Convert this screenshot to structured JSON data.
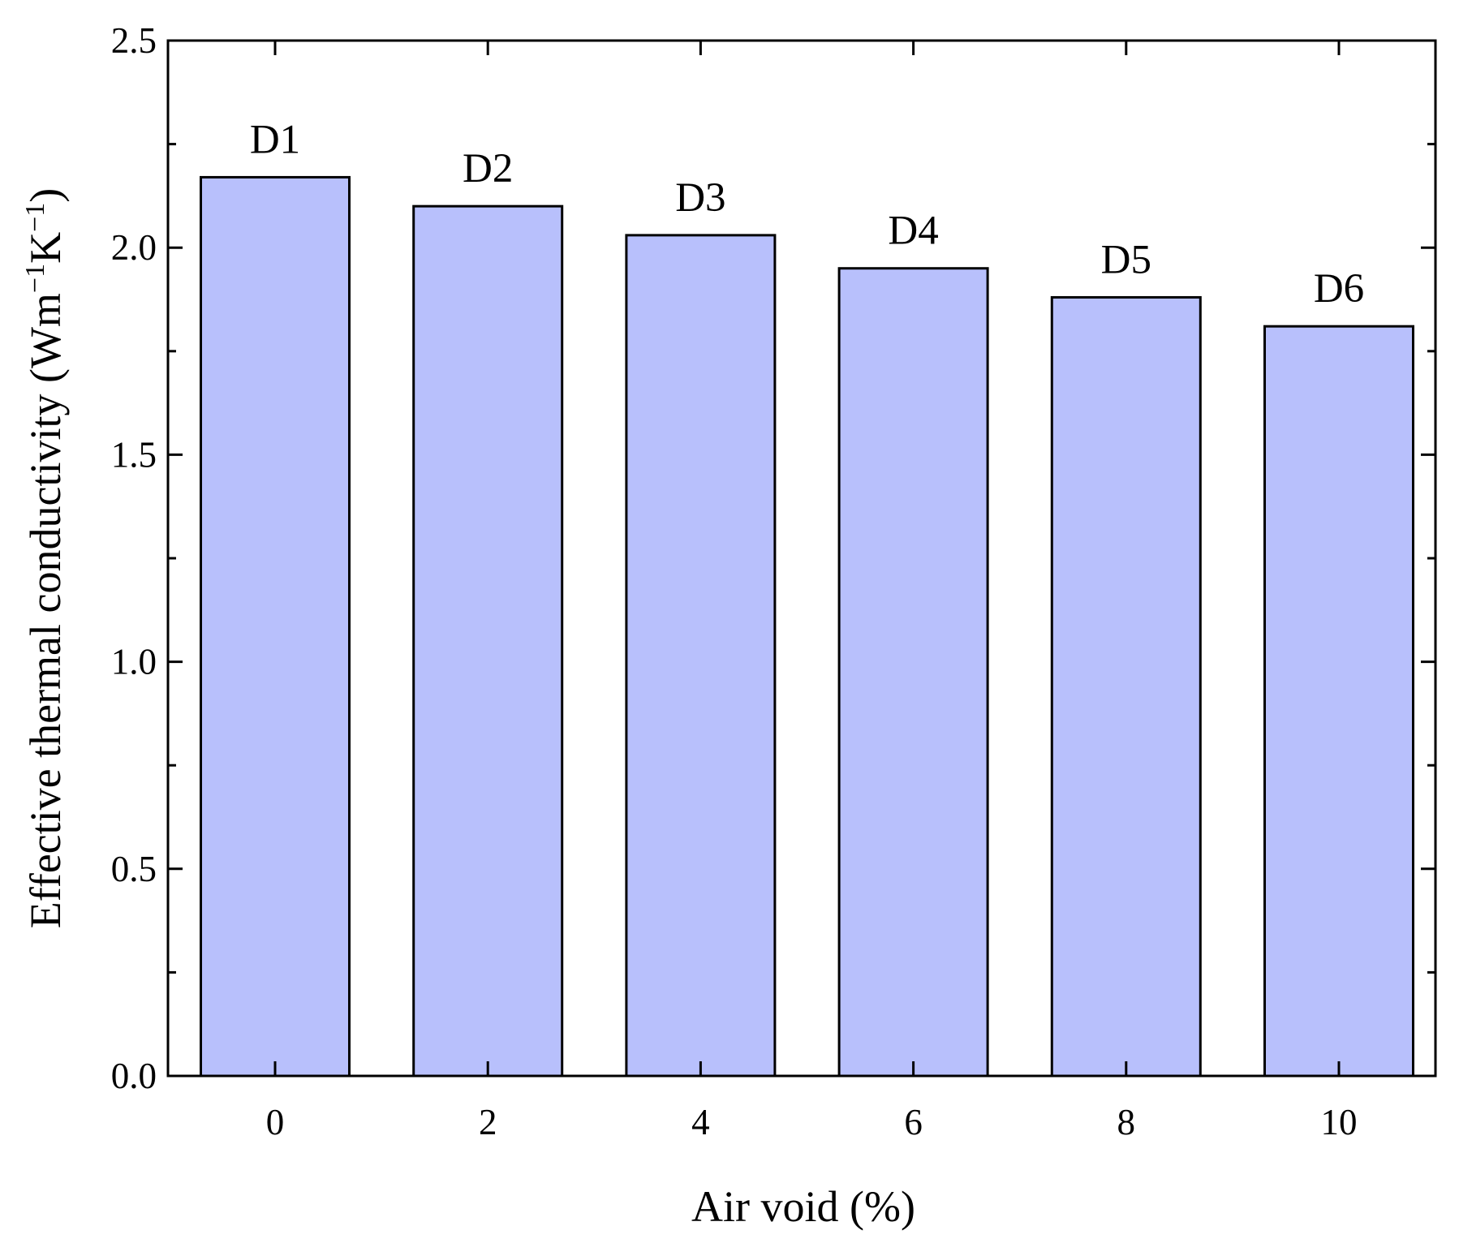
{
  "chart_data": {
    "type": "bar",
    "categories": [
      "0",
      "2",
      "4",
      "6",
      "8",
      "10"
    ],
    "values": [
      2.17,
      2.1,
      2.03,
      1.95,
      1.88,
      1.81
    ],
    "bar_labels": [
      "D1",
      "D2",
      "D3",
      "D4",
      "D5",
      "D6"
    ],
    "xlabel": "Air void (%)",
    "ylabel": {
      "text": "Effective thermal conductivity (Wm",
      "sup1": "−1",
      "mid": "K",
      "sup2": "−1",
      "end": ")"
    },
    "ylim": [
      0,
      2.5
    ],
    "yticks": [
      "0.0",
      "0.5",
      "1.0",
      "1.5",
      "2.0",
      "2.5"
    ],
    "bar_color": "#b8c0fc",
    "bar_edge_color": "#000000",
    "grid": false,
    "legend": "none"
  }
}
